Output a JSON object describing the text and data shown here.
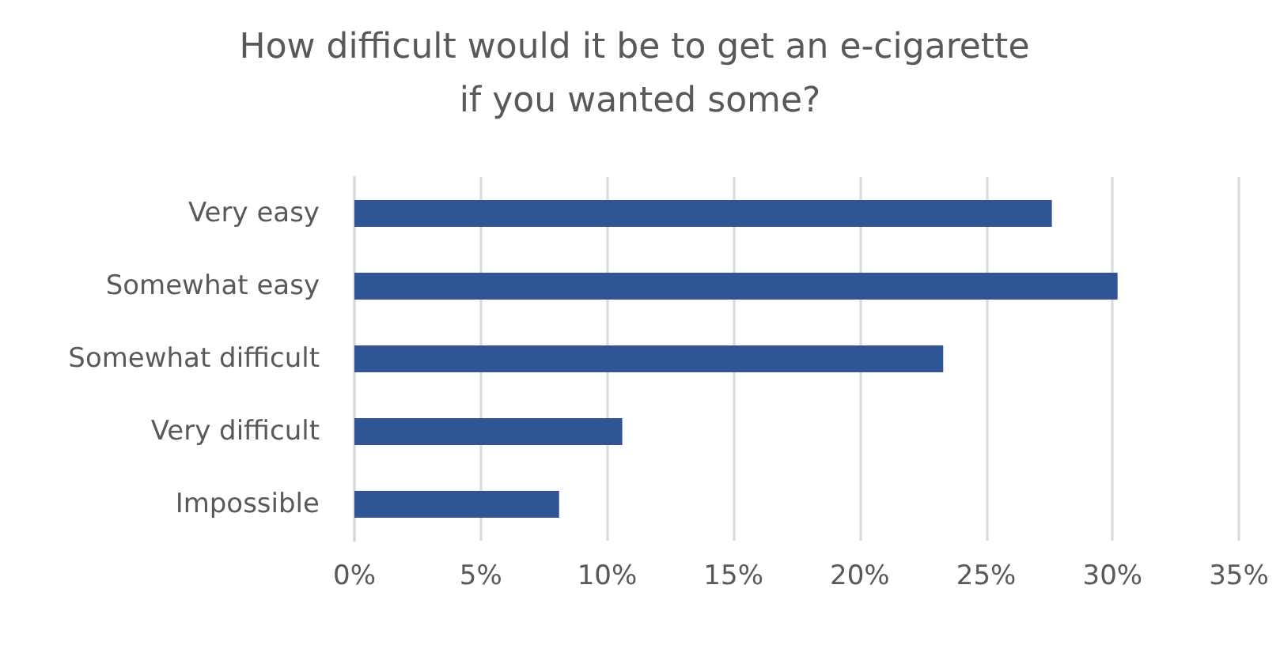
{
  "chart_data": {
    "type": "bar",
    "orientation": "horizontal",
    "title": "How difficult would it be to get an e-cigarette if you wanted some?",
    "categories": [
      "Very easy",
      "Somewhat easy",
      "Somewhat difficult",
      "Very difficult",
      "Impossible"
    ],
    "values": [
      27.6,
      30.2,
      23.3,
      10.6,
      8.1
    ],
    "color": "#2f5597",
    "xlim": [
      0,
      35
    ],
    "xticks": [
      {
        "value": 0,
        "label": "0%"
      },
      {
        "value": 5,
        "label": "5%"
      },
      {
        "value": 10,
        "label": "10%"
      },
      {
        "value": 15,
        "label": "15%"
      },
      {
        "value": 20,
        "label": "20%"
      },
      {
        "value": 25,
        "label": "25%"
      },
      {
        "value": 30,
        "label": "30%"
      },
      {
        "value": 35,
        "label": "35%"
      }
    ],
    "grid": "x"
  }
}
